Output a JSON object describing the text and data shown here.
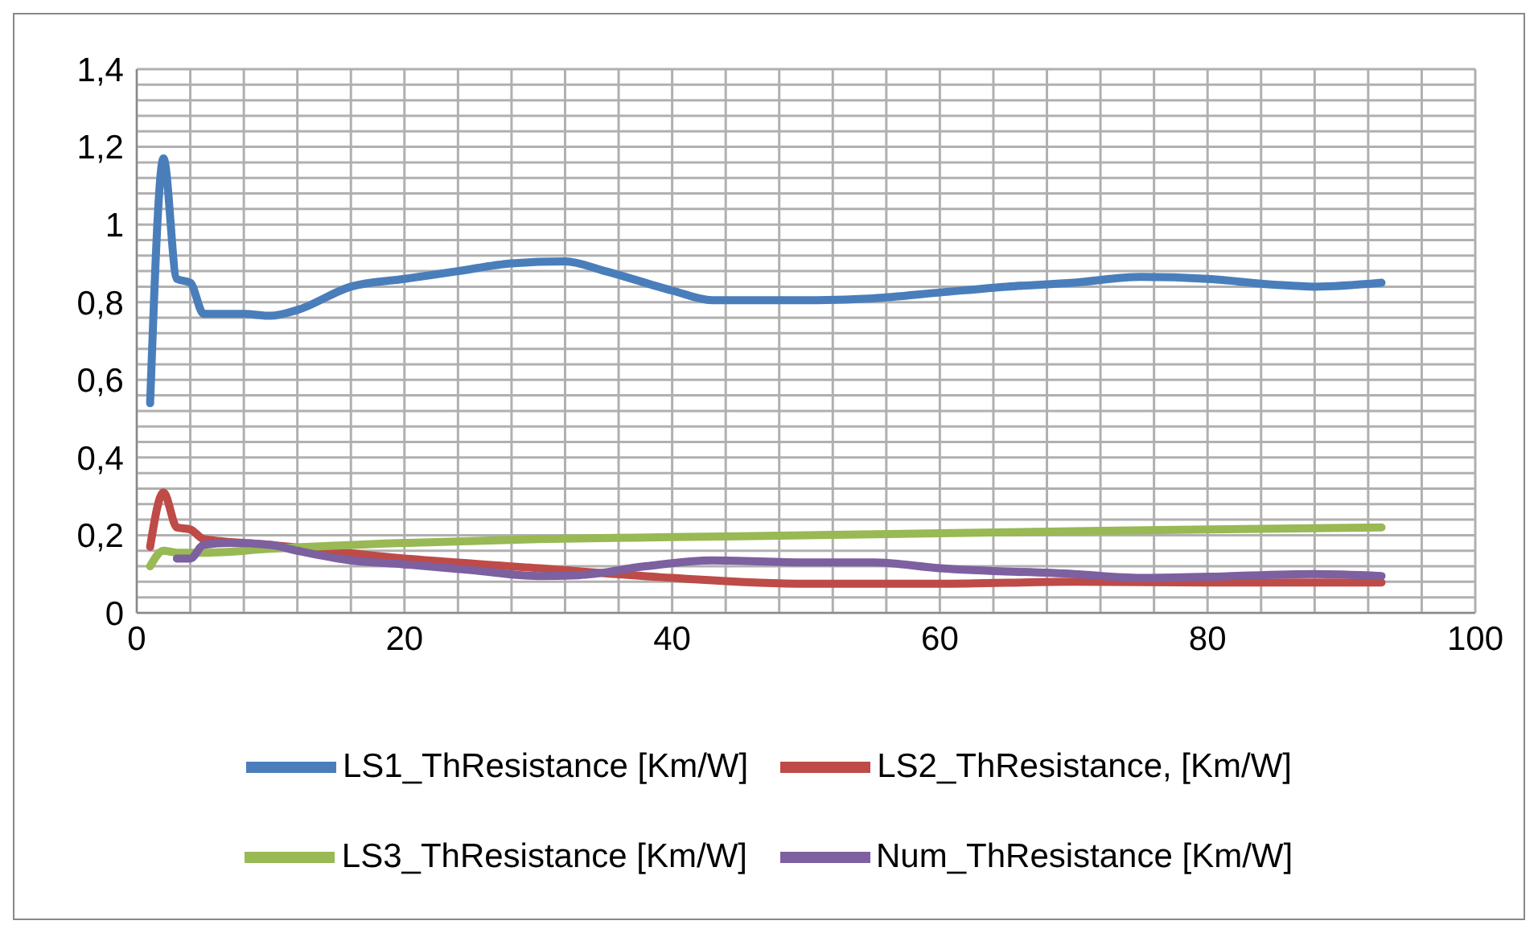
{
  "chart_data": {
    "type": "line",
    "xlim": [
      0,
      100
    ],
    "ylim": [
      0,
      1.4
    ],
    "xticks": [
      0,
      {
        "value": 4,
        "label": null
      },
      {
        "value": 8,
        "label": null
      },
      {
        "value": 12,
        "label": null
      },
      {
        "value": 16,
        "label": null
      },
      20,
      {
        "value": 24,
        "label": null
      },
      {
        "value": 28,
        "label": null
      },
      {
        "value": 32,
        "label": null
      },
      {
        "value": 36,
        "label": null
      },
      40,
      {
        "value": 44,
        "label": null
      },
      {
        "value": 48,
        "label": null
      },
      {
        "value": 52,
        "label": null
      },
      {
        "value": 56,
        "label": null
      },
      60,
      {
        "value": 64,
        "label": null
      },
      {
        "value": 68,
        "label": null
      },
      {
        "value": 72,
        "label": null
      },
      {
        "value": 76,
        "label": null
      },
      80,
      {
        "value": 84,
        "label": null
      },
      {
        "value": 88,
        "label": null
      },
      {
        "value": 92,
        "label": null
      },
      {
        "value": 96,
        "label": null
      },
      100
    ],
    "yticks": [
      0,
      {
        "value": 0.04,
        "label": null
      },
      {
        "value": 0.08,
        "label": null
      },
      {
        "value": 0.12,
        "label": null
      },
      {
        "value": 0.16,
        "label": null
      },
      {
        "value": 0.2,
        "label": "0,2"
      },
      {
        "value": 0.24,
        "label": null
      },
      {
        "value": 0.28,
        "label": null
      },
      {
        "value": 0.32,
        "label": null
      },
      {
        "value": 0.36,
        "label": null
      },
      {
        "value": 0.4,
        "label": "0,4"
      },
      {
        "value": 0.44,
        "label": null
      },
      {
        "value": 0.48,
        "label": null
      },
      {
        "value": 0.52,
        "label": null
      },
      {
        "value": 0.56,
        "label": null
      },
      {
        "value": 0.6,
        "label": "0,6"
      },
      {
        "value": 0.64,
        "label": null
      },
      {
        "value": 0.68,
        "label": null
      },
      {
        "value": 0.72,
        "label": null
      },
      {
        "value": 0.76,
        "label": null
      },
      {
        "value": 0.8,
        "label": "0,8"
      },
      {
        "value": 0.84,
        "label": null
      },
      {
        "value": 0.88,
        "label": null
      },
      {
        "value": 0.92,
        "label": null
      },
      {
        "value": 0.96,
        "label": null
      },
      1,
      {
        "value": 1.04,
        "label": null
      },
      {
        "value": 1.08,
        "label": null
      },
      {
        "value": 1.12,
        "label": null
      },
      {
        "value": 1.16,
        "label": null
      },
      {
        "value": 1.2,
        "label": "1,2"
      },
      {
        "value": 1.24,
        "label": null
      },
      {
        "value": 1.28,
        "label": null
      },
      {
        "value": 1.32,
        "label": null
      },
      {
        "value": 1.36,
        "label": null
      },
      {
        "value": 1.4,
        "label": "1,4"
      }
    ],
    "grid": true,
    "legend": "bottom",
    "marker": "none",
    "line_style": "solid",
    "series": [
      {
        "name": "LS1_ThResistance [Km/W]",
        "color": "#4a7ebb",
        "x": [
          1,
          2,
          3,
          4,
          5,
          8,
          10,
          12,
          16,
          20,
          24,
          28,
          32,
          35,
          40,
          43,
          50,
          55,
          60,
          65,
          70,
          75,
          80,
          85,
          88,
          93
        ],
        "values": [
          0.54,
          1.17,
          0.86,
          0.85,
          0.77,
          0.77,
          0.765,
          0.78,
          0.84,
          0.86,
          0.88,
          0.9,
          0.905,
          0.88,
          0.83,
          0.805,
          0.805,
          0.81,
          0.825,
          0.84,
          0.85,
          0.865,
          0.86,
          0.845,
          0.84,
          0.85
        ]
      },
      {
        "name": "LS2_ThResistance, [Km/W]",
        "color": "#be4b48",
        "x": [
          1,
          2,
          3,
          4,
          5,
          10,
          20,
          30,
          40,
          50,
          60,
          70,
          80,
          93
        ],
        "values": [
          0.17,
          0.31,
          0.22,
          0.215,
          0.19,
          0.175,
          0.14,
          0.115,
          0.09,
          0.075,
          0.075,
          0.08,
          0.078,
          0.078
        ]
      },
      {
        "name": "LS3_ThResistance [Km/W]",
        "color": "#98b954",
        "x": [
          1,
          2,
          3,
          5,
          10,
          20,
          30,
          40,
          50,
          60,
          70,
          80,
          93
        ],
        "values": [
          0.12,
          0.16,
          0.155,
          0.155,
          0.165,
          0.18,
          0.19,
          0.195,
          0.2,
          0.205,
          0.21,
          0.215,
          0.22
        ]
      },
      {
        "name": "Num_ThResistance [Km/W]",
        "color": "#7d60a0",
        "x": [
          3,
          4,
          5,
          7,
          10,
          12,
          16,
          20,
          25,
          30,
          33,
          38,
          43,
          50,
          55,
          60,
          70,
          75,
          80,
          88,
          93
        ],
        "values": [
          0.14,
          0.14,
          0.175,
          0.18,
          0.175,
          0.16,
          0.135,
          0.125,
          0.11,
          0.095,
          0.097,
          0.12,
          0.135,
          0.13,
          0.13,
          0.115,
          0.1,
          0.09,
          0.093,
          0.1,
          0.095
        ]
      }
    ]
  }
}
